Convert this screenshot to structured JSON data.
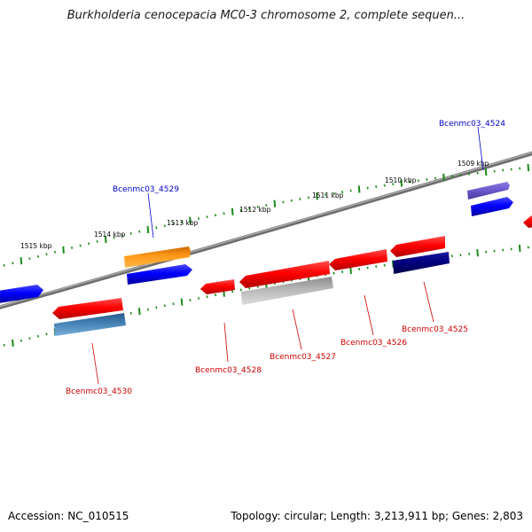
{
  "title": "Burkholderia cenocepacia MC0-3 chromosome 2, complete sequen...",
  "footer": {
    "accession": "Accession: NC_010515",
    "topology": "Topology: circular; Length: 3,213,911 bp; Genes: 2,803"
  },
  "colors": {
    "backbone": "#7a7a7a",
    "tick": "#1a8a1a",
    "label_red": "#cc0000",
    "label_blue": "#0000cc",
    "leader": "#cc0000"
  },
  "tick_labels_outer": [
    "1515 kbp",
    "1514 kbp",
    "1513 kbp",
    "1512 kbp",
    "1511 kbp",
    "1510 kbp",
    "1509 kbp"
  ],
  "gene_labels": [
    "Bcenmc03_4524",
    "Bcenmc03_4529",
    "Bcenmc03_4525",
    "Bcenmc03_4526",
    "Bcenmc03_4527",
    "Bcenmc03_4528",
    "Bcenmc03_4530"
  ]
}
